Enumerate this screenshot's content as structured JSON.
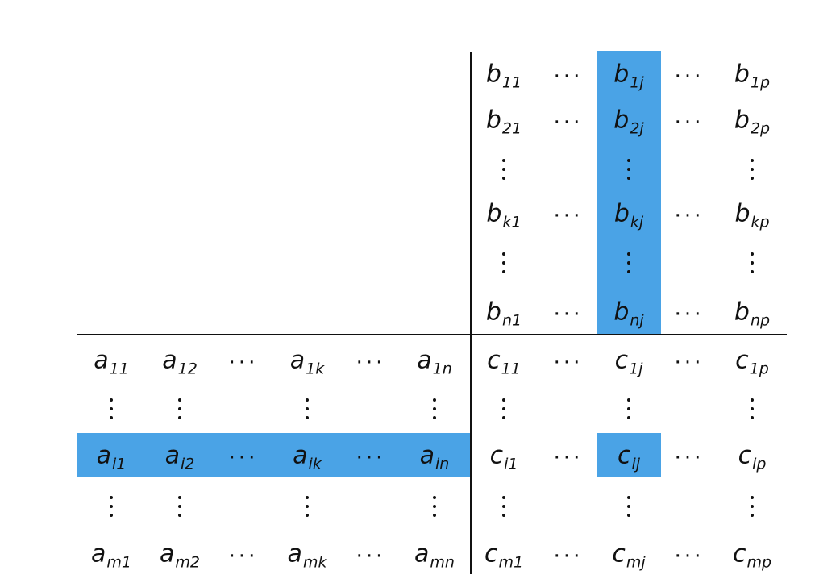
{
  "colors": {
    "highlight": "#4aa3e6",
    "rule": "#111111"
  },
  "matrix_b": {
    "rows": [
      [
        [
          "b",
          "11"
        ],
        "cdots",
        [
          "b",
          "1j"
        ],
        "cdots",
        [
          "b",
          "1p"
        ]
      ],
      [
        [
          "b",
          "21"
        ],
        "cdots",
        [
          "b",
          "2j"
        ],
        "cdots",
        [
          "b",
          "2p"
        ]
      ],
      [
        "vdots",
        "",
        "vdots",
        "",
        "vdots"
      ],
      [
        [
          "b",
          "k1"
        ],
        "cdots",
        [
          "b",
          "kj"
        ],
        "cdots",
        [
          "b",
          "kp"
        ]
      ],
      [
        "vdots",
        "",
        "vdots",
        "",
        "vdots"
      ],
      [
        [
          "b",
          "n1"
        ],
        "cdots",
        [
          "b",
          "nj"
        ],
        "cdots",
        [
          "b",
          "np"
        ]
      ]
    ]
  },
  "matrix_a": {
    "rows": [
      [
        [
          "a",
          "11"
        ],
        [
          "a",
          "12"
        ],
        "cdots",
        [
          "a",
          "1k"
        ],
        "cdots",
        [
          "a",
          "1n"
        ]
      ],
      [
        "vdots",
        "vdots",
        "",
        "vdots",
        "",
        "vdots"
      ],
      [
        [
          "a",
          "i1"
        ],
        [
          "a",
          "i2"
        ],
        "cdots",
        [
          "a",
          "ik"
        ],
        "cdots",
        [
          "a",
          "in"
        ]
      ],
      [
        "vdots",
        "vdots",
        "",
        "vdots",
        "",
        "vdots"
      ],
      [
        [
          "a",
          "m1"
        ],
        [
          "a",
          "m2"
        ],
        "cdots",
        [
          "a",
          "mk"
        ],
        "cdots",
        [
          "a",
          "mn"
        ]
      ]
    ]
  },
  "matrix_c": {
    "rows": [
      [
        [
          "c",
          "11"
        ],
        "cdots",
        [
          "c",
          "1j"
        ],
        "cdots",
        [
          "c",
          "1p"
        ]
      ],
      [
        "vdots",
        "",
        "vdots",
        "",
        "vdots"
      ],
      [
        [
          "c",
          "i1"
        ],
        "cdots",
        [
          "c",
          "ij"
        ],
        "cdots",
        [
          "c",
          "ip"
        ]
      ],
      [
        "vdots",
        "",
        "vdots",
        "",
        "vdots"
      ],
      [
        [
          "c",
          "m1"
        ],
        "cdots",
        [
          "c",
          "mj"
        ],
        "cdots",
        [
          "c",
          "mp"
        ]
      ]
    ]
  },
  "highlighted": {
    "b_column_index": 2,
    "a_row_index": 2,
    "c_cell": [
      2,
      2
    ]
  }
}
